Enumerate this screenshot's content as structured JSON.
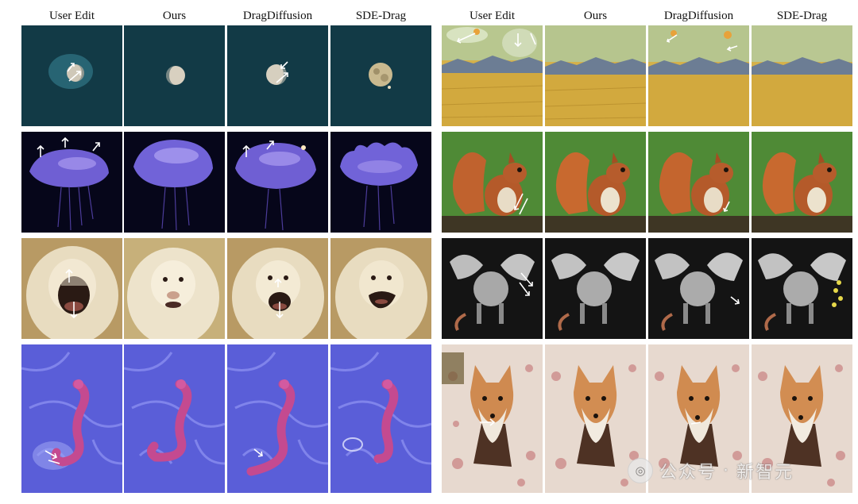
{
  "headers": [
    "User Edit",
    "Ours",
    "DragDiffusion",
    "SDE-Drag",
    "User Edit",
    "Ours",
    "DragDiffusion",
    "SDE-Drag"
  ],
  "watermark": {
    "account_type": "公众号",
    "separator": "·",
    "account_name": "新智元"
  }
}
